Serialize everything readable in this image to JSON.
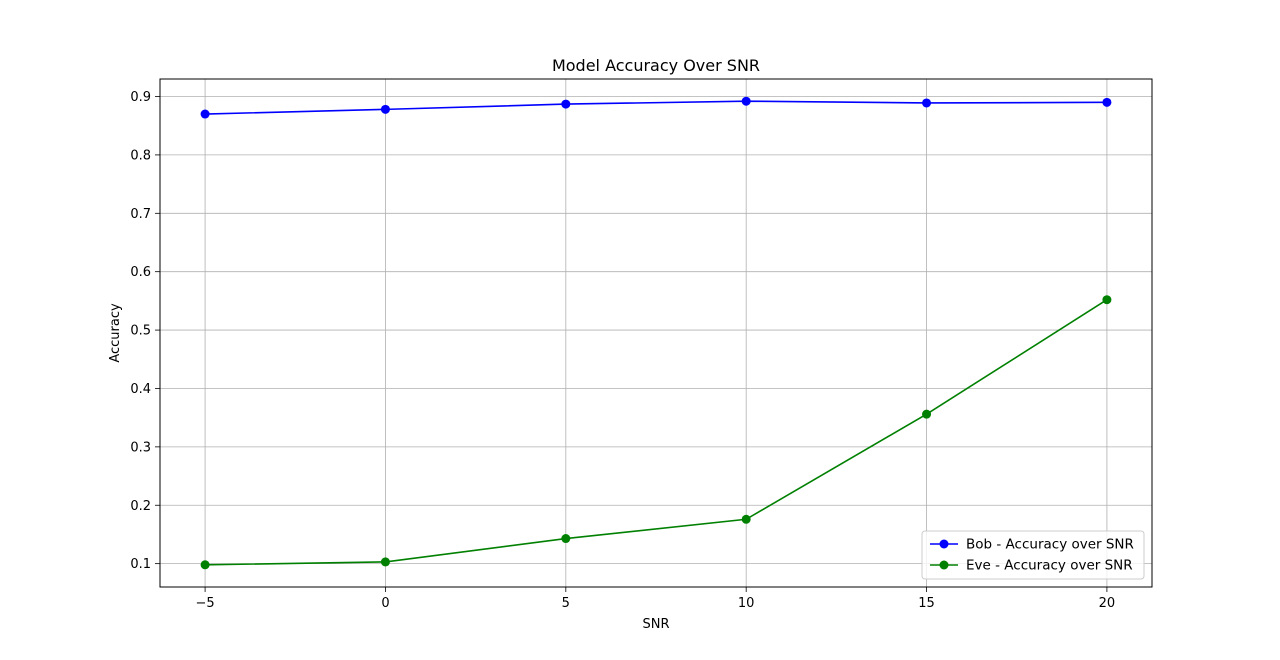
{
  "chart_data": {
    "type": "line",
    "title": "Model Accuracy Over SNR",
    "xlabel": "SNR",
    "ylabel": "Accuracy",
    "x": [
      -5,
      0,
      5,
      10,
      15,
      20
    ],
    "xlim": [
      -6.25,
      21.25
    ],
    "ylim": [
      0.06,
      0.93
    ],
    "xticks": [
      -5,
      0,
      5,
      10,
      15,
      20
    ],
    "xtick_labels": [
      "−5",
      "0",
      "5",
      "10",
      "15",
      "20"
    ],
    "yticks": [
      0.1,
      0.2,
      0.3,
      0.4,
      0.5,
      0.6,
      0.7,
      0.8,
      0.9
    ],
    "ytick_labels": [
      "0.1",
      "0.2",
      "0.3",
      "0.4",
      "0.5",
      "0.6",
      "0.7",
      "0.8",
      "0.9"
    ],
    "grid": true,
    "legend_position": "bottom-right",
    "series": [
      {
        "name": "Bob - Accuracy over SNR",
        "color": "#0000ff",
        "marker": "circle",
        "values": [
          0.87,
          0.878,
          0.887,
          0.892,
          0.889,
          0.89
        ]
      },
      {
        "name": "Eve - Accuracy over SNR",
        "color": "#008000",
        "marker": "circle",
        "values": [
          0.098,
          0.103,
          0.143,
          0.176,
          0.356,
          0.552
        ]
      }
    ]
  }
}
